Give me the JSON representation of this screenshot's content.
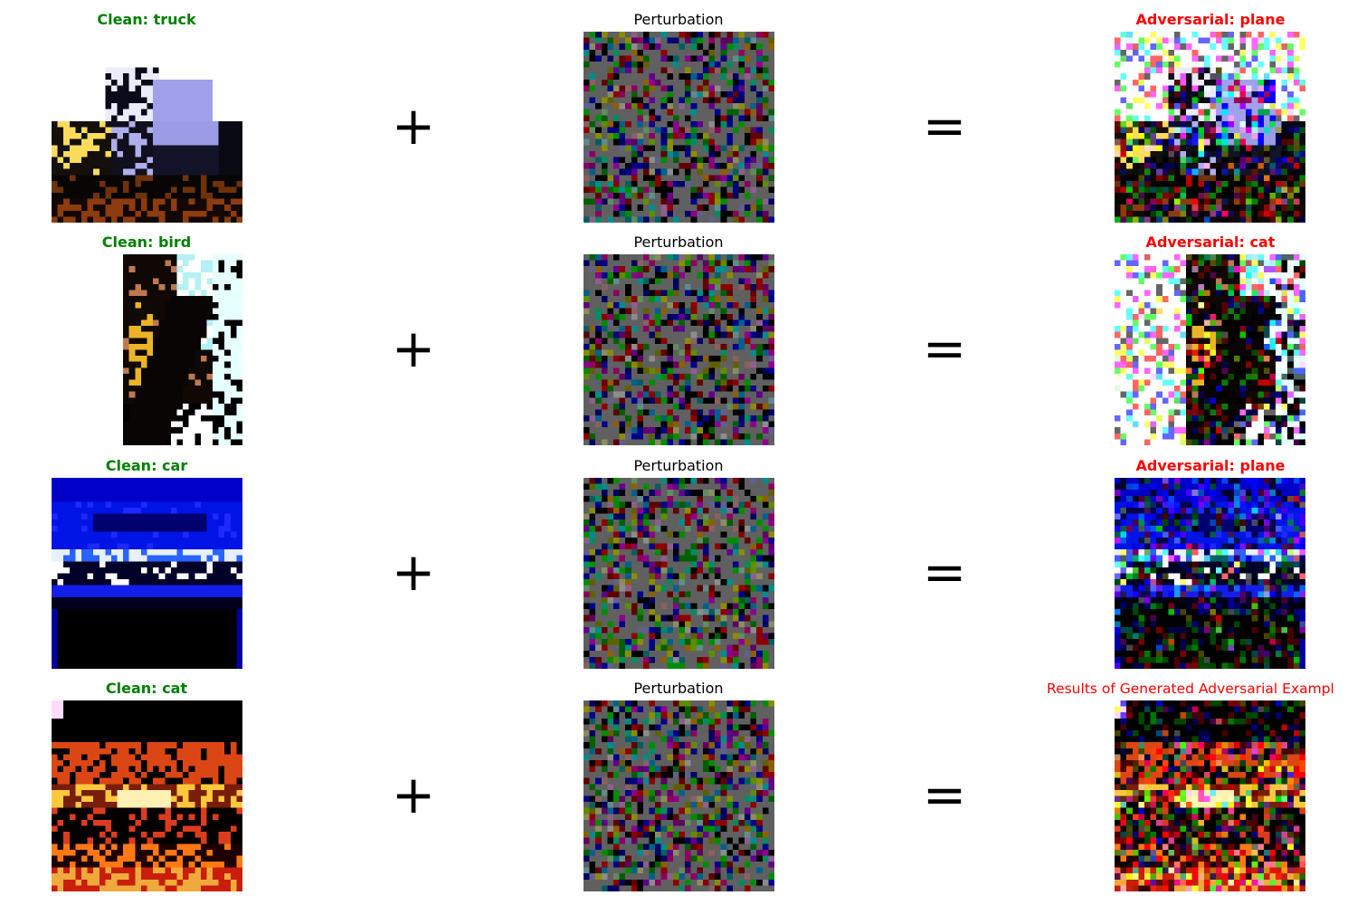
{
  "operators": {
    "plus": "+",
    "equals": "="
  },
  "rows": [
    {
      "clean_title": "Clean: truck",
      "clean_icon": "truck-image",
      "perturbation_title": "Perturbation",
      "adversarial_title": "Adversarial: plane"
    },
    {
      "clean_title": "Clean: bird",
      "clean_icon": "bird-image",
      "perturbation_title": "Perturbation",
      "adversarial_title": "Adversarial: cat"
    },
    {
      "clean_title": "Clean: car",
      "clean_icon": "car-image",
      "perturbation_title": "Perturbation",
      "adversarial_title": "Adversarial: plane"
    },
    {
      "clean_title": "Clean: cat",
      "clean_icon": "cat-image",
      "perturbation_title": "Perturbation",
      "adversarial_title": "Results of Generated Adversarial Exampl"
    }
  ],
  "colors": {
    "clean_label": "#008000",
    "adversarial_label": "#ff0000",
    "perturbation_label": "#000000"
  }
}
